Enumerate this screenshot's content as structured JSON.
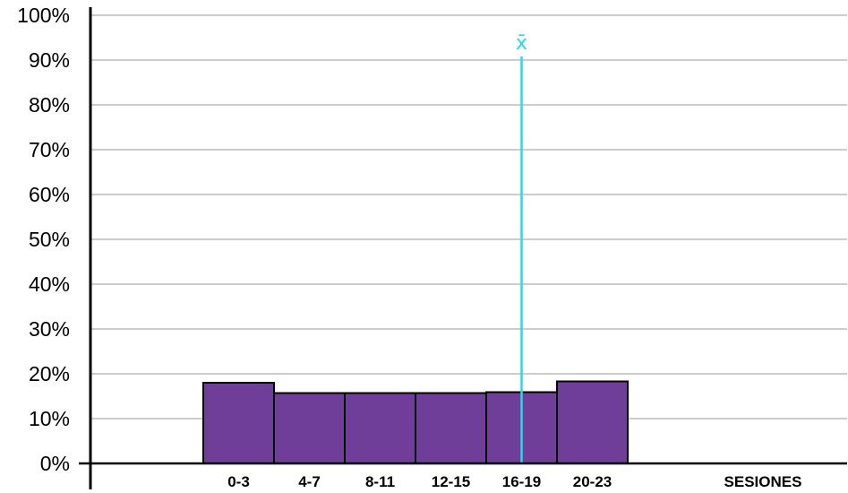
{
  "chart_data": {
    "type": "bar",
    "title": "",
    "xlabel": "SESIONES",
    "ylabel": "",
    "categories": [
      "0-3",
      "4-7",
      "8-11",
      "12-15",
      "16-19",
      "20-23"
    ],
    "values": [
      18,
      15.7,
      15.7,
      15.7,
      15.9,
      18.3
    ],
    "ylim": [
      0,
      100
    ],
    "yticks": [
      "0%",
      "10%",
      "20%",
      "30%",
      "40%",
      "50%",
      "60%",
      "70%",
      "80%",
      "90%",
      "100%"
    ],
    "grid": true,
    "legend": "none",
    "marker": {
      "symbol": "x̄",
      "category": "16-19",
      "value": 94
    },
    "colors": {
      "bar_fill": "#6f3e99",
      "bar_edge": "#000000",
      "grid": "#9a9a9a",
      "axis": "#000000",
      "marker_line": "#2ad8e6"
    }
  }
}
